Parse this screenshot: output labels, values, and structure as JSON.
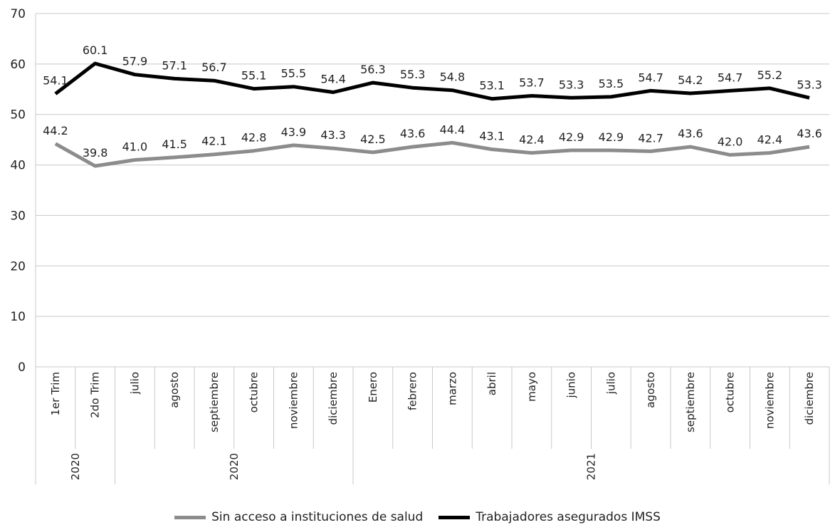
{
  "chart_data": {
    "type": "line",
    "categories": [
      "1er Trim",
      "2do Trim",
      "julio",
      "agosto",
      "septiembre",
      "octubre",
      "noviembre",
      "diciembre",
      "Enero",
      "febrero",
      "marzo",
      "abril",
      "mayo",
      "junio",
      "julio",
      "agosto",
      "septiembre",
      "octubre",
      "noviembre",
      "diciembre"
    ],
    "groups": [
      {
        "label": "2020",
        "start": 0,
        "end": 1
      },
      {
        "label": "2020",
        "start": 2,
        "end": 7
      },
      {
        "label": "2021",
        "start": 8,
        "end": 19
      }
    ],
    "series": [
      {
        "name": "Sin acceso a instituciones de salud",
        "color": "#8c8c8c",
        "values": [
          44.2,
          39.8,
          41.0,
          41.5,
          42.1,
          42.8,
          43.9,
          43.3,
          42.5,
          43.6,
          44.4,
          43.1,
          42.4,
          42.9,
          42.9,
          42.7,
          43.6,
          42.0,
          42.4,
          43.6
        ],
        "labels": [
          "44.2",
          "39.8",
          "41.0",
          "41.5",
          "42.1",
          "42.8",
          "43.9",
          "43.3",
          "42.5",
          "43.6",
          "44.4",
          "43.1",
          "42.4",
          "42.9",
          "42.9",
          "42.7",
          "43.6",
          "42.0",
          "42.4",
          "43.6"
        ]
      },
      {
        "name": "Trabajadores asegurados IMSS",
        "color": "#000000",
        "values": [
          54.1,
          60.1,
          57.9,
          57.1,
          56.7,
          55.1,
          55.5,
          54.4,
          56.3,
          55.3,
          54.8,
          53.1,
          53.7,
          53.3,
          53.5,
          54.7,
          54.2,
          54.7,
          55.2,
          53.3
        ],
        "labels": [
          "54.1",
          "60.1",
          "57.9",
          "57.1",
          "56.7",
          "55.1",
          "55.5",
          "54.4",
          "56.3",
          "55.3",
          "54.8",
          "53.1",
          "53.7",
          "53.3",
          "53.5",
          "54.7",
          "54.2",
          "54.7",
          "55.2",
          "53.3"
        ]
      }
    ],
    "y_ticks": [
      "0",
      "10",
      "20",
      "30",
      "40",
      "50",
      "60",
      "70"
    ],
    "ylim": [
      0,
      70
    ],
    "grid": true,
    "legend_position": "bottom-center",
    "grid_color": "#c8c8c8"
  }
}
